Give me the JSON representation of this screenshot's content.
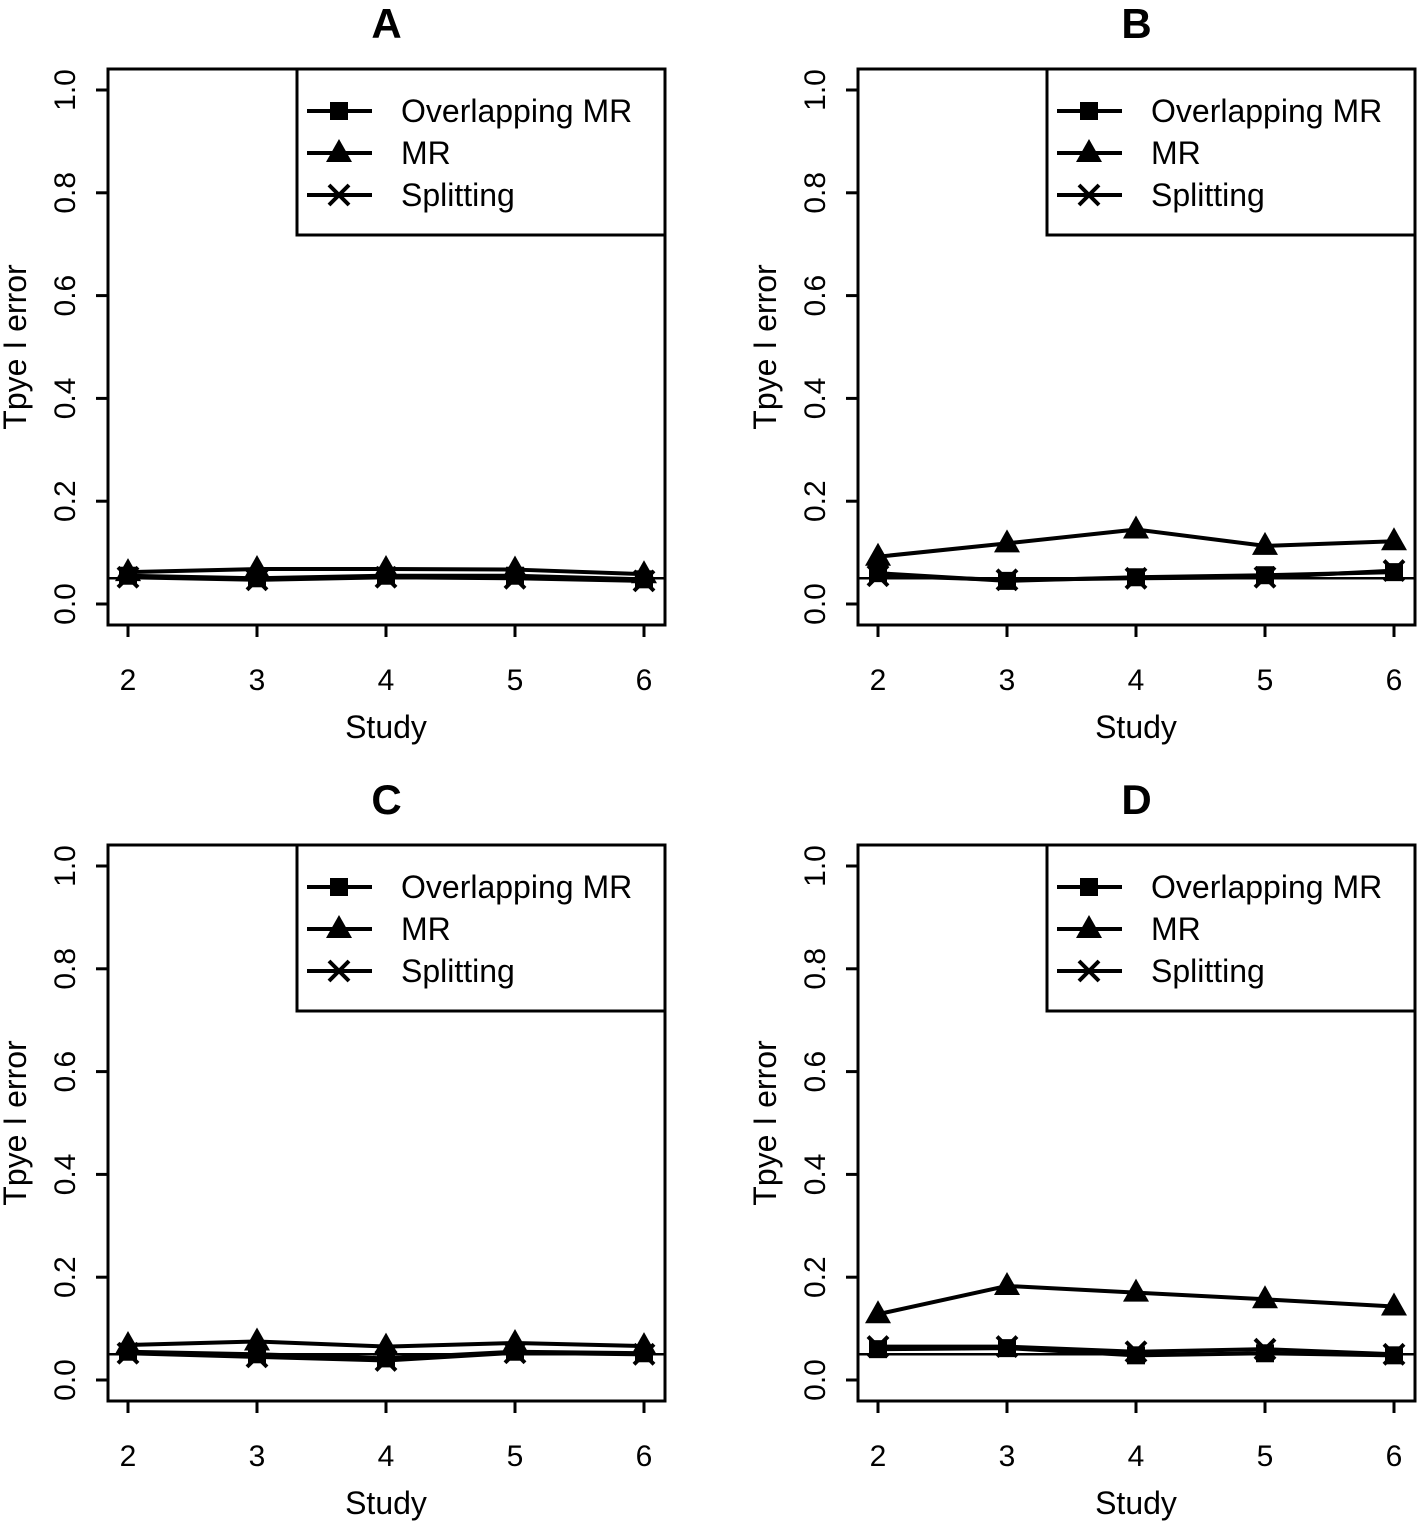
{
  "chart_data": [
    {
      "type": "line",
      "title": "A",
      "xlabel": "Study",
      "ylabel": "Tpye I error",
      "x": [
        2,
        3,
        4,
        5,
        6
      ],
      "ylim": [
        0.0,
        1.0
      ],
      "yticks": [
        "0.0",
        "0.2",
        "0.4",
        "0.6",
        "0.8",
        "1.0"
      ],
      "reference_line": 0.05,
      "legend_position": "top-right",
      "series": [
        {
          "name": "Overlapping MR",
          "marker": "square",
          "values": [
            0.055,
            0.05,
            0.055,
            0.055,
            0.048
          ]
        },
        {
          "name": "MR",
          "marker": "triangle",
          "values": [
            0.062,
            0.068,
            0.068,
            0.067,
            0.058
          ]
        },
        {
          "name": "Splitting",
          "marker": "x",
          "values": [
            0.052,
            0.047,
            0.052,
            0.05,
            0.045
          ]
        }
      ]
    },
    {
      "type": "line",
      "title": "B",
      "xlabel": "Study",
      "ylabel": "Tpye I error",
      "x": [
        2,
        3,
        4,
        5,
        6
      ],
      "ylim": [
        0.0,
        1.0
      ],
      "yticks": [
        "0.0",
        "0.2",
        "0.4",
        "0.6",
        "0.8",
        "1.0"
      ],
      "reference_line": 0.05,
      "legend_position": "top-right",
      "series": [
        {
          "name": "Overlapping MR",
          "marker": "square",
          "values": [
            0.06,
            0.045,
            0.052,
            0.056,
            0.062
          ]
        },
        {
          "name": "MR",
          "marker": "triangle",
          "values": [
            0.092,
            0.118,
            0.145,
            0.113,
            0.122
          ]
        },
        {
          "name": "Splitting",
          "marker": "x",
          "values": [
            0.055,
            0.047,
            0.05,
            0.052,
            0.065
          ]
        }
      ]
    },
    {
      "type": "line",
      "title": "C",
      "xlabel": "Study",
      "ylabel": "Tpye I error",
      "x": [
        2,
        3,
        4,
        5,
        6
      ],
      "ylim": [
        0.0,
        1.0
      ],
      "yticks": [
        "0.0",
        "0.2",
        "0.4",
        "0.6",
        "0.8",
        "1.0"
      ],
      "reference_line": 0.05,
      "legend_position": "top-right",
      "series": [
        {
          "name": "Overlapping MR",
          "marker": "square",
          "values": [
            0.055,
            0.05,
            0.042,
            0.055,
            0.052
          ]
        },
        {
          "name": "MR",
          "marker": "triangle",
          "values": [
            0.068,
            0.075,
            0.065,
            0.072,
            0.066
          ]
        },
        {
          "name": "Splitting",
          "marker": "x",
          "values": [
            0.052,
            0.045,
            0.038,
            0.053,
            0.05
          ]
        }
      ]
    },
    {
      "type": "line",
      "title": "D",
      "xlabel": "Study",
      "ylabel": "Tpye I error",
      "x": [
        2,
        3,
        4,
        5,
        6
      ],
      "ylim": [
        0.0,
        1.0
      ],
      "yticks": [
        "0.0",
        "0.2",
        "0.4",
        "0.6",
        "0.8",
        "1.0"
      ],
      "reference_line": 0.05,
      "legend_position": "top-right",
      "series": [
        {
          "name": "Overlapping MR",
          "marker": "square",
          "values": [
            0.06,
            0.062,
            0.048,
            0.052,
            0.048
          ]
        },
        {
          "name": "MR",
          "marker": "triangle",
          "values": [
            0.128,
            0.183,
            0.17,
            0.157,
            0.143
          ]
        },
        {
          "name": "Splitting",
          "marker": "x",
          "values": [
            0.065,
            0.065,
            0.055,
            0.06,
            0.05
          ]
        }
      ]
    }
  ]
}
